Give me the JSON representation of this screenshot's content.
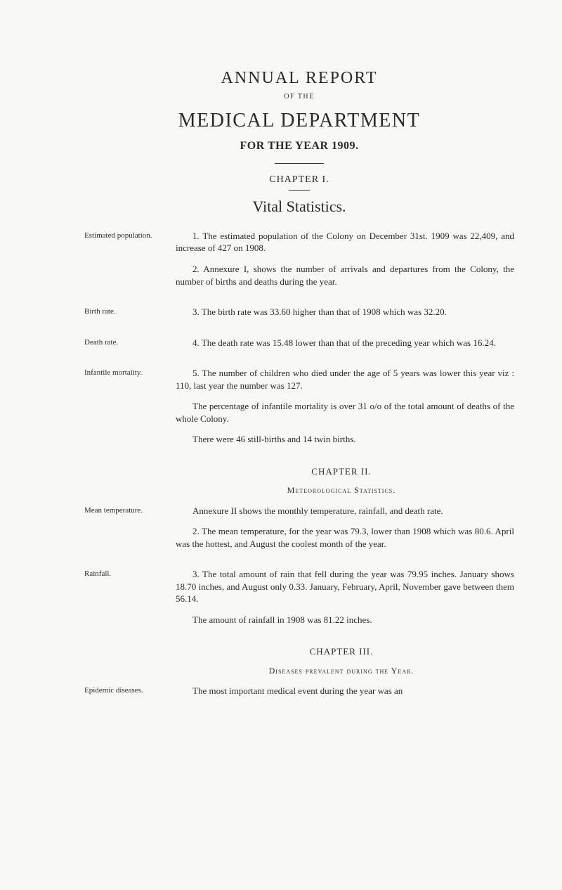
{
  "header": {
    "title": "ANNUAL REPORT",
    "of_the": "OF THE",
    "dept": "MEDICAL DEPARTMENT",
    "year_line": "FOR THE YEAR 1909."
  },
  "chapter1": {
    "label": "CHAPTER I.",
    "title": "Vital Statistics."
  },
  "rows": {
    "est_pop_label": "Estimated population.",
    "est_pop_p1": "1. The estimated population of the Colony on December 31st. 1909 was 22,409, and increase of 427 on 1908.",
    "est_pop_p2": "2. Annexure I, shows the number of arrivals and departures from the Colony, the number of births and deaths during the year.",
    "birth_label": "Birth rate.",
    "birth_p1": "3. The birth rate was 33.60 higher than that of 1908 which was 32.20.",
    "death_label": "Death rate.",
    "death_p1": "4. The death rate was 15.48 lower than that of the pre­ceding year which was 16.24.",
    "inf_label": "Infantile mortality.",
    "inf_p1": "5. The number of children who died under the age of 5 years was lower this year viz : 110, last year the number was 127.",
    "inf_p2": "The percentage of infantile mortality is over 31 o/o of the total amount of deaths of the whole Colony.",
    "inf_p3": "There were 46 still-births and 14 twin births."
  },
  "chapter2": {
    "label": "CHAPTER II.",
    "subhead": "Meteorological Statistics."
  },
  "rows2": {
    "mean_label": "Mean temperature.",
    "mean_p1": "Annexure II shows the monthly temperature, rainfall, and death rate.",
    "mean_p2": "2. The mean temperature, for the year was 79.3, lower than 1908 which was 80.6. April was the hottest, and August the coolest month of the year.",
    "rain_label": "Rainfall.",
    "rain_p1": "3. The total amount of rain that fell during the year was 79.95 inches. January shows 18.70 inches, and August only 0.33. January, February, April, November gave between them 56.14.",
    "rain_p2": "The amount of rainfall in 1908 was 81.22 inches."
  },
  "chapter3": {
    "label": "CHAPTER III.",
    "subhead": "Diseases prevalent during the Year."
  },
  "rows3": {
    "epi_label": "Epidemic diseases.",
    "epi_p1": "The most important medical event during the year was an"
  }
}
